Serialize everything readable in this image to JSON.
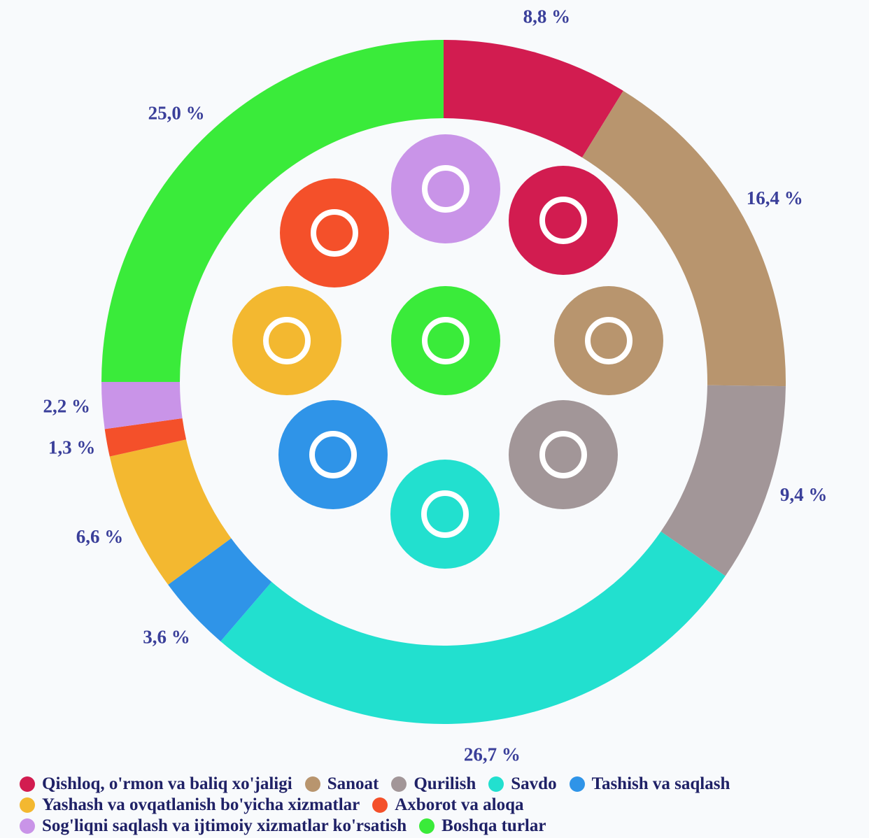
{
  "chart_data": {
    "type": "donut",
    "categories": [
      "Qishloq, o'rmon va baliq xo'jaligi",
      "Sanoat",
      "Qurilish",
      "Savdo",
      "Tashish va saqlash",
      "Yashash va ovqatlanish bo'yicha xizmatlar",
      "Axborot va aloqa",
      "Sog'liqni saqlash va ijtimoiy xizmatlar ko'rsatish",
      "Boshqa turlar"
    ],
    "values": [
      8.8,
      16.4,
      9.4,
      26.7,
      3.6,
      6.6,
      1.3,
      2.2,
      25.0
    ],
    "value_labels": [
      "8,8 %",
      "16,4 %",
      "9,4 %",
      "26,7 %",
      "3,6 %",
      "6,6 %",
      "1,3 %",
      "2,2 %",
      "25,0 %"
    ],
    "colors": [
      "#d21c50",
      "#b8956e",
      "#a29698",
      "#22e0cf",
      "#2f94e8",
      "#f3b830",
      "#f4502a",
      "#c994e8",
      "#3aeb3a"
    ]
  }
}
